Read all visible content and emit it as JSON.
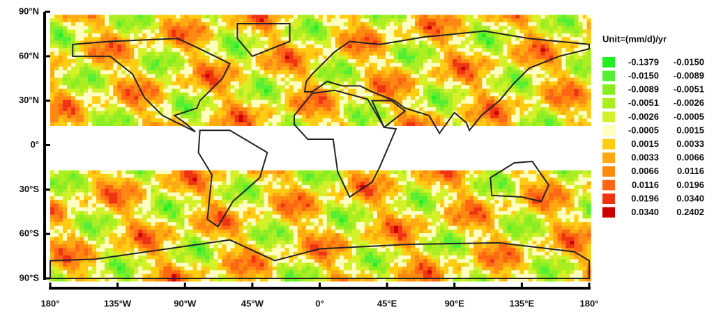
{
  "map": {
    "legend_title": "Unit=(mm/d)/yr",
    "legend": [
      {
        "low": "-0.1379",
        "high": "-0.0150",
        "color": "#22ee22"
      },
      {
        "low": "-0.0150",
        "high": "-0.0089",
        "color": "#55ee33"
      },
      {
        "low": "-0.0089",
        "high": "-0.0051",
        "color": "#88ee22"
      },
      {
        "low": "-0.0051",
        "high": "-0.0026",
        "color": "#aaee22"
      },
      {
        "low": "-0.0026",
        "high": "-0.0005",
        "color": "#d4f028"
      },
      {
        "low": "-0.0005",
        "high": "0.0015",
        "color": "#ffffc0"
      },
      {
        "low": "0.0015",
        "high": "0.0033",
        "color": "#ffcc11"
      },
      {
        "low": "0.0033",
        "high": "0.0066",
        "color": "#ffaa11"
      },
      {
        "low": "0.0066",
        "high": "0.0116",
        "color": "#ff8811"
      },
      {
        "low": "0.0116",
        "high": "0.0196",
        "color": "#ff6611"
      },
      {
        "low": "0.0196",
        "high": "0.0340",
        "color": "#ee3311"
      },
      {
        "low": "0.0340",
        "high": "0.2402",
        "color": "#cc0000"
      }
    ],
    "xlim": [
      -180,
      180
    ],
    "ylim": [
      -90,
      90
    ],
    "xticks": [
      {
        "value": -180,
        "label": "180°"
      },
      {
        "value": -135,
        "label": "135°W"
      },
      {
        "value": -90,
        "label": "90°W"
      },
      {
        "value": -45,
        "label": "45°W"
      },
      {
        "value": 0,
        "label": "0°"
      },
      {
        "value": 45,
        "label": "45°E"
      },
      {
        "value": 90,
        "label": "90°E"
      },
      {
        "value": 135,
        "label": "135°E"
      },
      {
        "value": 180,
        "label": "180°"
      }
    ],
    "yticks": [
      {
        "value": 90,
        "label": "90°N"
      },
      {
        "value": 60,
        "label": "60°N"
      },
      {
        "value": 30,
        "label": "30°N"
      },
      {
        "value": 0,
        "label": "0°"
      },
      {
        "value": -30,
        "label": "30°S"
      },
      {
        "value": -60,
        "label": "60°S"
      },
      {
        "value": -90,
        "label": "90°S"
      }
    ]
  }
}
